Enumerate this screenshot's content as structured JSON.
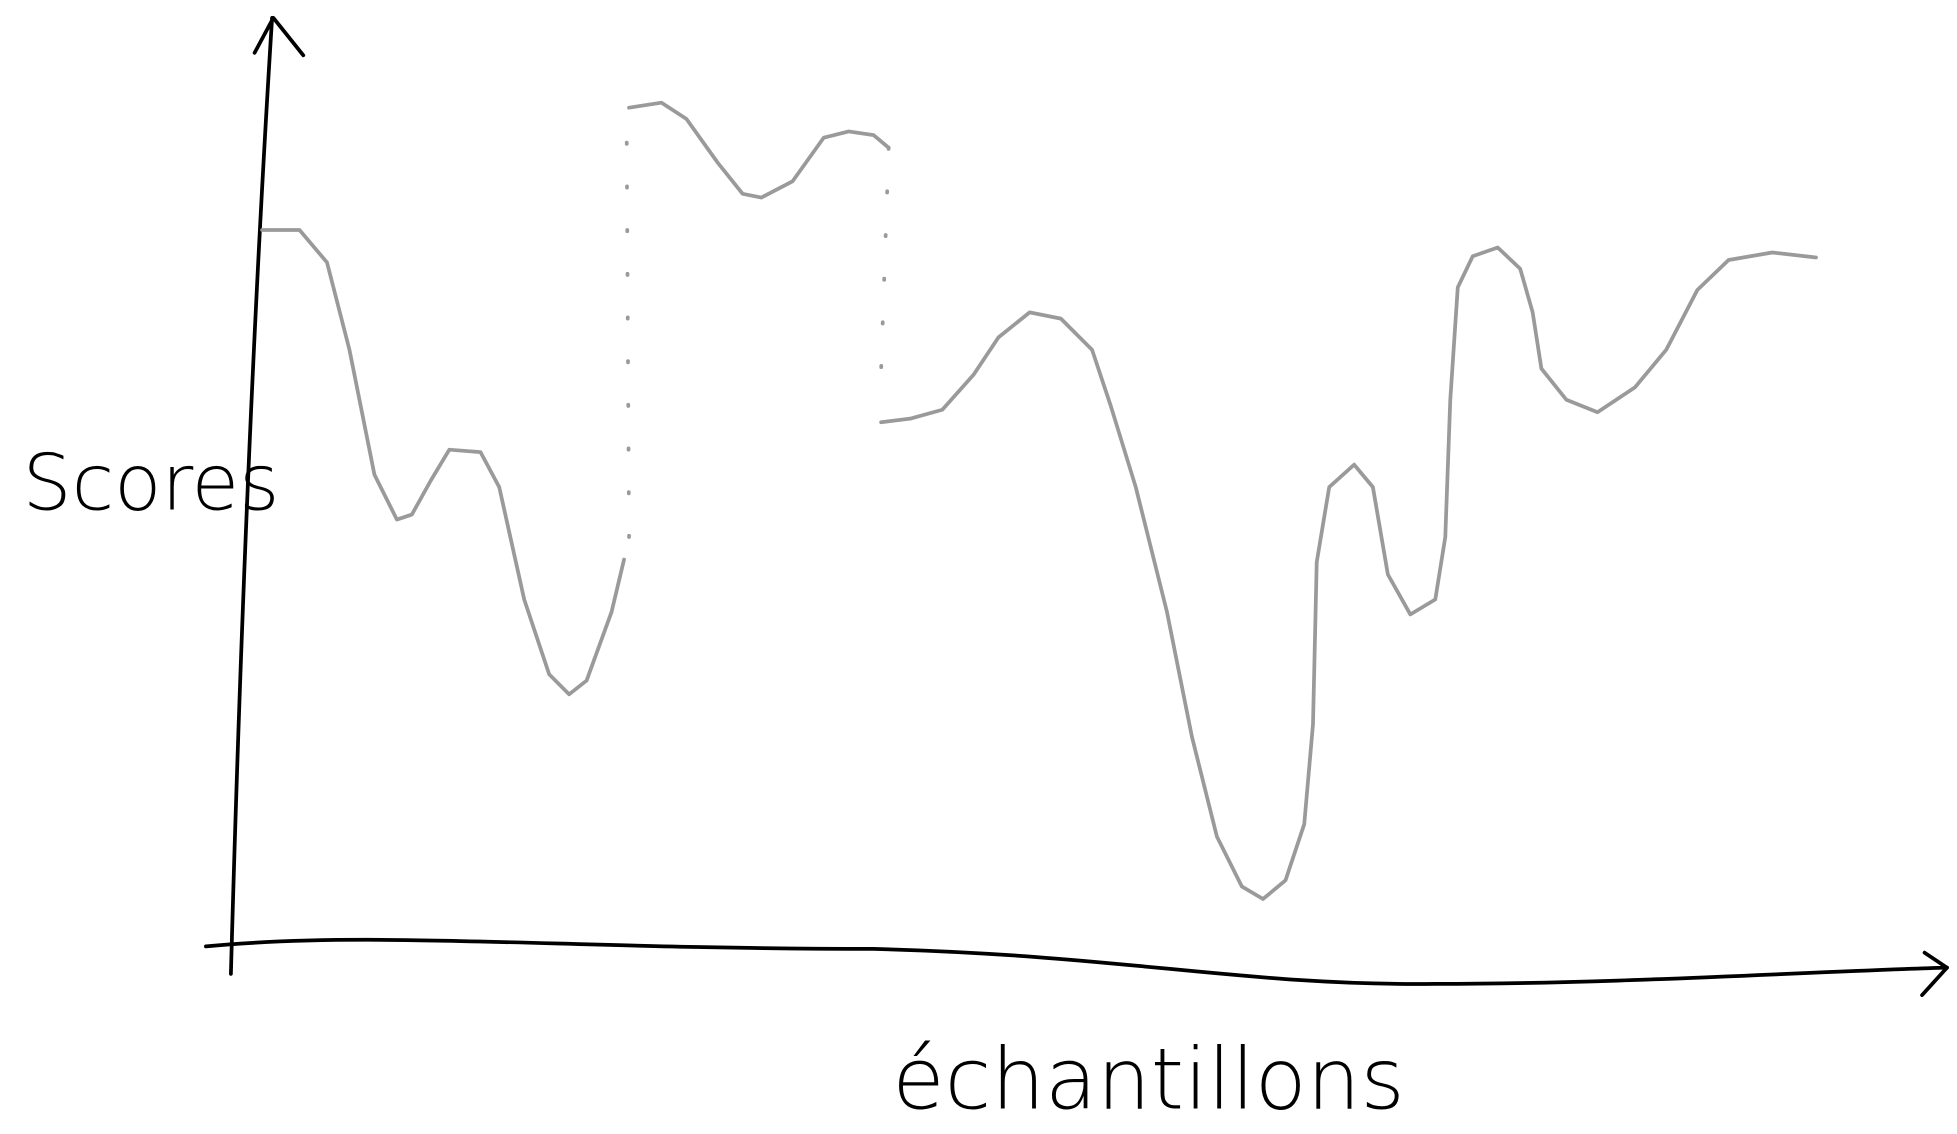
{
  "axes": {
    "y_label": "Scores",
    "x_label": "échantillons"
  }
}
